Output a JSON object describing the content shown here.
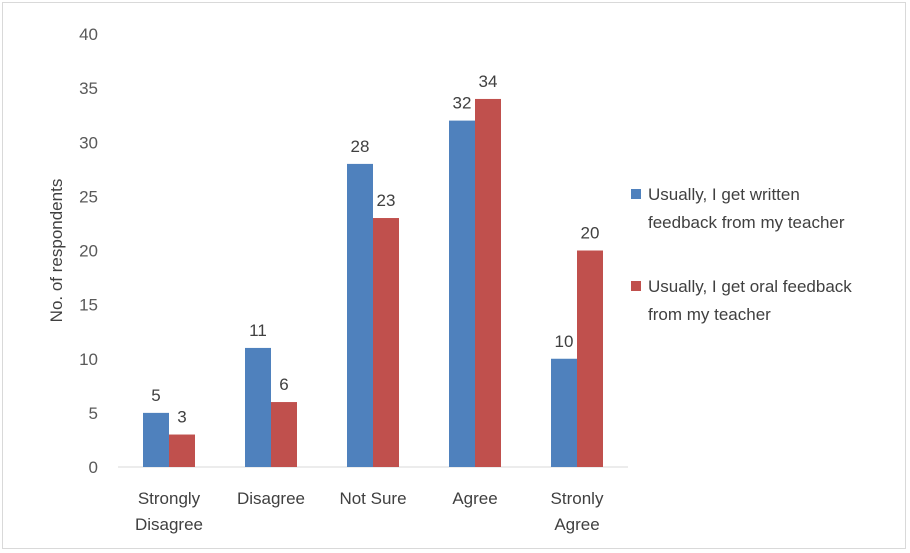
{
  "chart_data": {
    "type": "bar",
    "ylabel": "No. of respondents",
    "xlabel": "",
    "ylim": [
      0,
      40
    ],
    "yticks": [
      0,
      5,
      10,
      15,
      20,
      25,
      30,
      35,
      40
    ],
    "grid": false,
    "legend_position": "right",
    "categories": [
      [
        "Strongly",
        "Disagree"
      ],
      [
        "Disagree"
      ],
      [
        "Not Sure"
      ],
      [
        "Agree"
      ],
      [
        "Stronly",
        "Agree"
      ]
    ],
    "series": [
      {
        "name_lines": [
          "Usually, I get written",
          "feedback from my teacher"
        ],
        "color": "#4f81bd",
        "values": [
          5,
          11,
          28,
          32,
          10
        ]
      },
      {
        "name_lines": [
          "Usually, I get oral feedback",
          "from my teacher"
        ],
        "color": "#c0504d",
        "values": [
          3,
          6,
          23,
          34,
          20
        ]
      }
    ]
  }
}
